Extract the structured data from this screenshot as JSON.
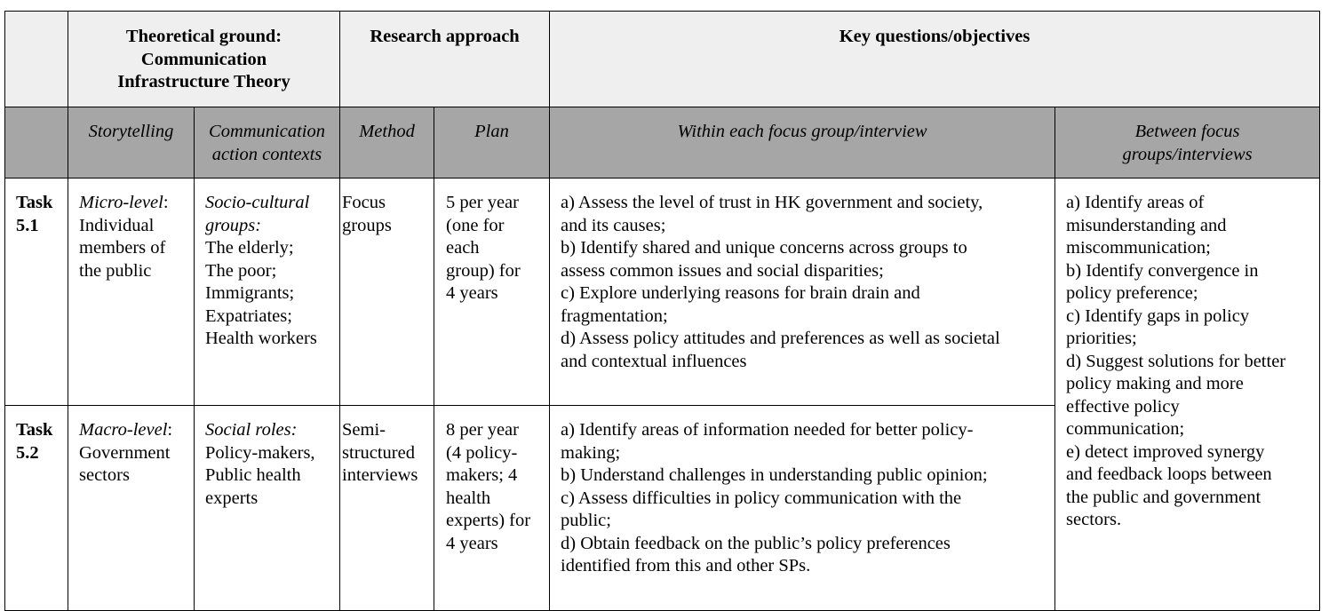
{
  "header": {
    "theoretical_ground": "Theoretical ground:\nCommunication\nInfrastructure Theory",
    "research_approach": "Research approach",
    "key_questions": "Key questions/objectives"
  },
  "subheader": {
    "storytelling": "Storytelling",
    "communication_action_contexts": "Communication\naction contexts",
    "method": "Method",
    "plan": "Plan",
    "within": "Within each focus group/interview",
    "between": "Between focus\ngroups/interviews"
  },
  "rows": [
    {
      "task": "Task\n5.1",
      "story_level": "Micro-level",
      "story_rest": ":\nIndividual\nmembers of\nthe public",
      "context_label": "Socio-cultural\ngroups:",
      "context_rest": "The elderly;\nThe poor;\nImmigrants;\nExpatriates;\nHealth workers",
      "method": "Focus\ngroups",
      "plan": "5 per year\n(one for\neach\ngroup) for\n4 years",
      "within": "a) Assess the level of trust in HK government and society,\nand its causes;\nb) Identify shared and unique concerns across groups to\nassess common issues and social disparities;\nc) Explore underlying reasons for brain drain and\nfragmentation;\nd) Assess policy attitudes and preferences as well as societal\nand contextual influences"
    },
    {
      "task": "Task\n5.2",
      "story_level": "Macro-level",
      "story_rest": ":\nGovernment\nsectors",
      "context_label": "Social roles:",
      "context_rest": "Policy-makers,\nPublic health\nexperts",
      "method": "Semi-\nstructured\ninterviews",
      "plan": "8 per year\n(4 policy-\nmakers; 4\nhealth\nexperts) for\n4 years",
      "within": "a) Identify areas of information needed for better policy-\nmaking;\nb) Understand challenges in understanding public opinion;\nc) Assess difficulties in policy communication with the\npublic;\nd) Obtain feedback on the public’s policy preferences\nidentified from this and other SPs."
    }
  ],
  "between": "a) Identify areas of\nmisunderstanding and\nmiscommunication;\nb) Identify convergence in\npolicy preference;\nc) Identify gaps in policy\npriorities;\nd) Suggest solutions for better\npolicy making and more\neffective policy\ncommunication;\ne) detect improved synergy\nand feedback loops between\nthe public and government\nsectors."
}
